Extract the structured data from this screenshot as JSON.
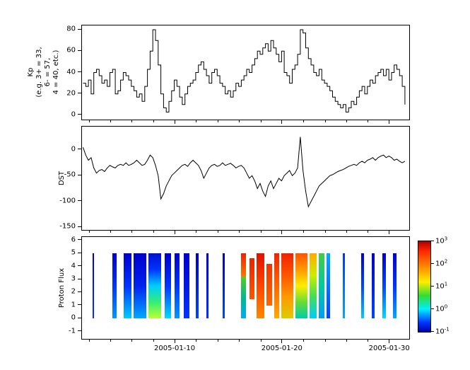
{
  "chart_data": [
    {
      "type": "line",
      "panel": "kp",
      "title": "",
      "ylabel": "Kp\n(e.g. 3+ = 33,\n6- = 57,\n4 = 40, etc.)",
      "ylim": [
        -4,
        84
      ],
      "yticks": [
        80,
        60,
        40,
        20,
        0
      ],
      "step": true,
      "x0": 1.4,
      "dx": 0.25,
      "x_units": "day of 2005-01",
      "values": [
        30,
        27,
        33,
        20,
        40,
        43,
        37,
        30,
        33,
        27,
        40,
        43,
        20,
        23,
        33,
        40,
        37,
        33,
        27,
        23,
        17,
        20,
        13,
        27,
        43,
        60,
        80,
        70,
        47,
        20,
        7,
        3,
        13,
        23,
        33,
        27,
        17,
        10,
        20,
        27,
        30,
        33,
        40,
        47,
        50,
        43,
        37,
        30,
        40,
        43,
        37,
        30,
        27,
        20,
        23,
        17,
        23,
        30,
        27,
        33,
        37,
        43,
        40,
        47,
        53,
        60,
        57,
        63,
        67,
        60,
        70,
        63,
        57,
        50,
        60,
        40,
        37,
        30,
        43,
        47,
        57,
        80,
        77,
        63,
        53,
        47,
        40,
        37,
        43,
        33,
        30,
        27,
        23,
        17,
        13,
        10,
        7,
        10,
        3,
        7,
        13,
        10,
        17,
        23,
        27,
        20,
        27,
        33,
        30,
        37,
        40,
        43,
        37,
        43,
        33,
        40,
        47,
        43,
        37,
        27,
        10
      ]
    },
    {
      "type": "line",
      "panel": "dst",
      "title": "",
      "ylabel": "DST",
      "ylim": [
        -155,
        45
      ],
      "yticks": [
        0,
        -50,
        -100,
        -150
      ],
      "step": false,
      "x0": 1.4,
      "dx": 0.25,
      "x_units": "day of 2005-01",
      "values": [
        5,
        -10,
        -20,
        -15,
        -35,
        -45,
        -40,
        -38,
        -42,
        -35,
        -30,
        -33,
        -35,
        -30,
        -28,
        -30,
        -25,
        -30,
        -28,
        -25,
        -20,
        -25,
        -30,
        -28,
        -20,
        -10,
        -15,
        -30,
        -50,
        -95,
        -85,
        -70,
        -60,
        -50,
        -45,
        -40,
        -35,
        -30,
        -28,
        -32,
        -25,
        -20,
        -25,
        -30,
        -40,
        -55,
        -45,
        -35,
        -30,
        -28,
        -32,
        -30,
        -25,
        -30,
        -28,
        -26,
        -30,
        -35,
        -32,
        -30,
        -35,
        -45,
        -55,
        -50,
        -60,
        -75,
        -65,
        -80,
        -90,
        -70,
        -60,
        -75,
        -65,
        -55,
        -60,
        -50,
        -45,
        -40,
        -50,
        -45,
        -35,
        25,
        -40,
        -80,
        -110,
        -100,
        -90,
        -80,
        -70,
        -65,
        -60,
        -55,
        -50,
        -48,
        -45,
        -42,
        -40,
        -38,
        -35,
        -32,
        -30,
        -28,
        -30,
        -25,
        -22,
        -25,
        -20,
        -18,
        -15,
        -20,
        -15,
        -12,
        -10,
        -15,
        -12,
        -15,
        -20,
        -18,
        -22,
        -25,
        -22
      ]
    },
    {
      "type": "heatmap",
      "panel": "proton_flux",
      "title": "",
      "ylabel": "Proton Flux",
      "ylim": [
        -1.55,
        6.25
      ],
      "yticks": [
        6,
        5,
        4,
        3,
        2,
        1,
        0,
        -1
      ],
      "xlim_days": [
        1.3,
        31.8
      ],
      "xticks_days": [
        10,
        20,
        30
      ],
      "xtick_labels": [
        "2005-01-10",
        "2005-01-20",
        "2005-01-30"
      ],
      "value_scale": "log10, 1e-1 to 1e3",
      "bands": [
        {
          "d0": 2.3,
          "d1": 2.42,
          "y0": 0,
          "y1": 5,
          "g": [
            "#0000cc",
            "#0033ff"
          ]
        },
        {
          "d0": 4.1,
          "d1": 4.5,
          "y0": 0,
          "y1": 5,
          "g": [
            "#0000cc",
            "#0033ff",
            "#0099ff"
          ]
        },
        {
          "d0": 5.2,
          "d1": 5.9,
          "y0": 0,
          "y1": 5,
          "g": [
            "#0000cc",
            "#0033ff",
            "#00ccff"
          ]
        },
        {
          "d0": 6.1,
          "d1": 7.3,
          "y0": 0,
          "y1": 5,
          "g": [
            "#0000cc",
            "#0022ee",
            "#00aaff"
          ]
        },
        {
          "d0": 7.5,
          "d1": 8.7,
          "y0": 0,
          "y1": 5,
          "g": [
            "#0011cc",
            "#0033ff",
            "#00ccff",
            "#33ee77",
            "#bbff33"
          ]
        },
        {
          "d0": 9.0,
          "d1": 9.6,
          "y0": 0,
          "y1": 5,
          "g": [
            "#0000cc",
            "#0033ff",
            "#00ddff"
          ]
        },
        {
          "d0": 9.9,
          "d1": 10.4,
          "y0": 0,
          "y1": 5,
          "g": [
            "#0000cc",
            "#0033ff",
            "#0099ff"
          ]
        },
        {
          "d0": 10.8,
          "d1": 11.3,
          "y0": 0,
          "y1": 5,
          "g": [
            "#0000cc",
            "#0033ff"
          ]
        },
        {
          "d0": 11.9,
          "d1": 12.2,
          "y0": 0,
          "y1": 5,
          "g": [
            "#0000cc",
            "#0044ff"
          ]
        },
        {
          "d0": 12.9,
          "d1": 13.1,
          "y0": 0,
          "y1": 5,
          "g": [
            "#0000cc",
            "#0033ff"
          ]
        },
        {
          "d0": 14.4,
          "d1": 14.6,
          "y0": 0,
          "y1": 5,
          "g": [
            "#0000cc",
            "#0044ff"
          ]
        },
        {
          "d0": 16.1,
          "d1": 16.6,
          "y0": 3.2,
          "y1": 5,
          "g": [
            "#ee2200",
            "#ff7700"
          ]
        },
        {
          "d0": 16.1,
          "d1": 16.6,
          "y0": 0,
          "y1": 3.2,
          "g": [
            "#55cc22",
            "#00bb88",
            "#00aaff"
          ]
        },
        {
          "d0": 16.9,
          "d1": 17.4,
          "y0": 1.5,
          "y1": 4.6,
          "g": [
            "#ee2200",
            "#ff5500"
          ]
        },
        {
          "d0": 17.6,
          "d1": 18.3,
          "y0": 0,
          "y1": 5,
          "g": [
            "#dd1100",
            "#ff4400",
            "#ff8800"
          ]
        },
        {
          "d0": 18.5,
          "d1": 19.0,
          "y0": 1.0,
          "y1": 4.2,
          "g": [
            "#ee3300",
            "#ff6600"
          ]
        },
        {
          "d0": 19.2,
          "d1": 19.7,
          "y0": 0,
          "y1": 5,
          "g": [
            "#ee2200",
            "#ff6600",
            "#ffaa00"
          ]
        },
        {
          "d0": 19.9,
          "d1": 21.0,
          "y0": 0,
          "y1": 5,
          "g": [
            "#ee2200",
            "#ff5500",
            "#ff9900",
            "#ddcc00"
          ]
        },
        {
          "d0": 21.2,
          "d1": 22.3,
          "y0": 0,
          "y1": 5,
          "g": [
            "#ff5500",
            "#ff9900",
            "#ffee00",
            "#66dd33",
            "#00ccaa"
          ]
        },
        {
          "d0": 22.5,
          "d1": 23.2,
          "y0": 0,
          "y1": 5,
          "g": [
            "#ffaa00",
            "#ccee00",
            "#44dd55",
            "#00ccff"
          ]
        },
        {
          "d0": 23.4,
          "d1": 23.9,
          "y0": 0,
          "y1": 5,
          "g": [
            "#44cc44",
            "#00cc99",
            "#0099ff"
          ]
        },
        {
          "d0": 24.1,
          "d1": 24.4,
          "y0": 0,
          "y1": 5,
          "g": [
            "#00aaff",
            "#0044ff"
          ]
        },
        {
          "d0": 25.6,
          "d1": 25.8,
          "y0": 0,
          "y1": 5,
          "g": [
            "#0033ff",
            "#00aaff"
          ]
        },
        {
          "d0": 27.3,
          "d1": 27.6,
          "y0": 0,
          "y1": 5,
          "g": [
            "#0000cc",
            "#0044ff",
            "#00ccff"
          ]
        },
        {
          "d0": 28.3,
          "d1": 28.6,
          "y0": 0,
          "y1": 5,
          "g": [
            "#0000cc",
            "#0044ff"
          ]
        },
        {
          "d0": 29.3,
          "d1": 29.6,
          "y0": 0,
          "y1": 5,
          "g": [
            "#0000cc",
            "#0044ff",
            "#00ddff"
          ]
        },
        {
          "d0": 30.3,
          "d1": 30.6,
          "y0": 0,
          "y1": 5,
          "g": [
            "#0000cc",
            "#0033ff",
            "#00aaff"
          ]
        }
      ],
      "colorbar": {
        "scale": "log",
        "exponents": [
          "3",
          "2",
          "1",
          "0",
          "-1"
        ],
        "gradient": [
          "#aa0000 0%",
          "#ff2200 10%",
          "#ff8800 28%",
          "#ffee00 45%",
          "#33dd33 60%",
          "#00eeff 75%",
          "#0033ff 90%",
          "#0000aa 100%"
        ]
      }
    }
  ]
}
